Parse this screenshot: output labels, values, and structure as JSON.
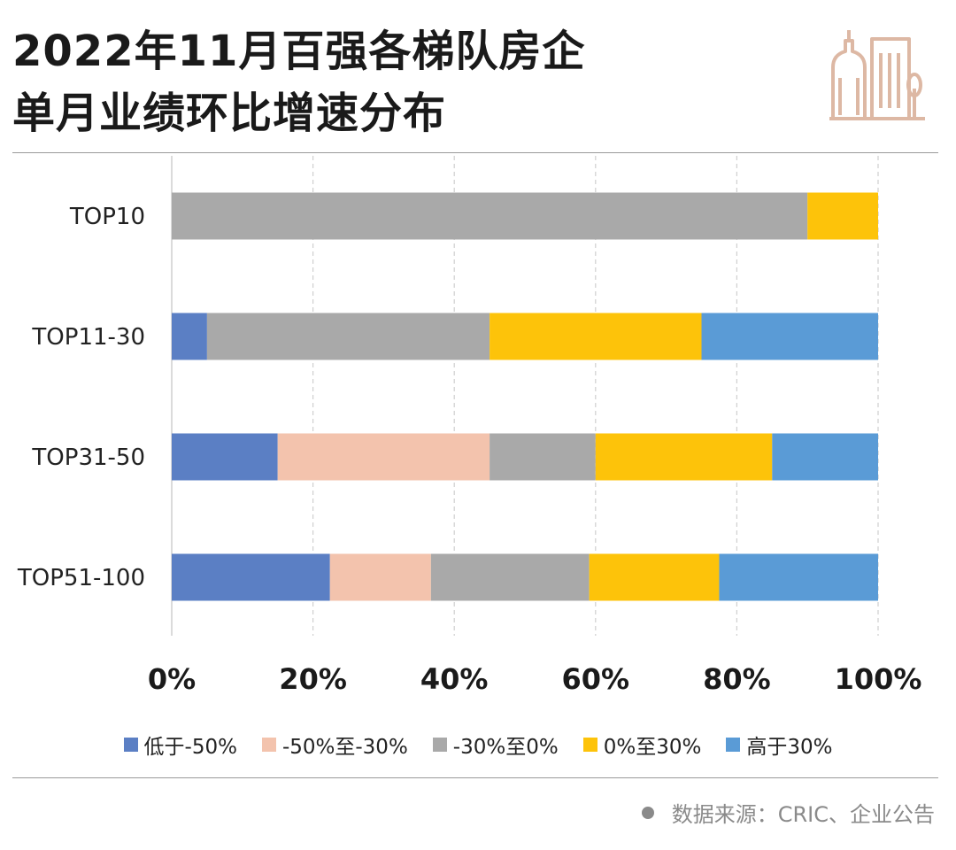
{
  "header": {
    "title_line1": "2022年11月百强各梯队房企",
    "title_line2": "单月业绩环比增速分布"
  },
  "chart_data": {
    "type": "bar",
    "orientation": "horizontal",
    "stacked": true,
    "percent_stacked": true,
    "title": "2022年11月百强各梯队房企单月业绩环比增速分布",
    "categories": [
      "TOP10",
      "TOP11-30",
      "TOP31-50",
      "TOP51-100"
    ],
    "series": [
      {
        "name": "低于-50%",
        "color": "#5b7fc4",
        "values": [
          0,
          5,
          15,
          22.4
        ]
      },
      {
        "name": "-50%至-30%",
        "color": "#f3c3ad",
        "values": [
          0,
          0,
          30,
          14.3
        ]
      },
      {
        "name": "-30%至0%",
        "color": "#a9a9a9",
        "values": [
          90,
          40,
          15,
          22.4
        ]
      },
      {
        "name": "0%至30%",
        "color": "#fdc30a",
        "values": [
          10,
          30,
          25,
          18.4
        ]
      },
      {
        "name": "高于30%",
        "color": "#5a9bd6",
        "values": [
          0,
          25,
          15,
          22.5
        ]
      }
    ],
    "x_ticks": [
      "0%",
      "20%",
      "40%",
      "60%",
      "80%",
      "100%"
    ],
    "xlim": [
      0,
      100
    ],
    "grid": true,
    "legend_position": "bottom"
  },
  "footer": {
    "source": "数据来源：CRIC、企业公告"
  },
  "colors": {
    "logo": "#ddb8a4",
    "grid": "#cfcfcf",
    "rule": "#9a9a9a"
  }
}
